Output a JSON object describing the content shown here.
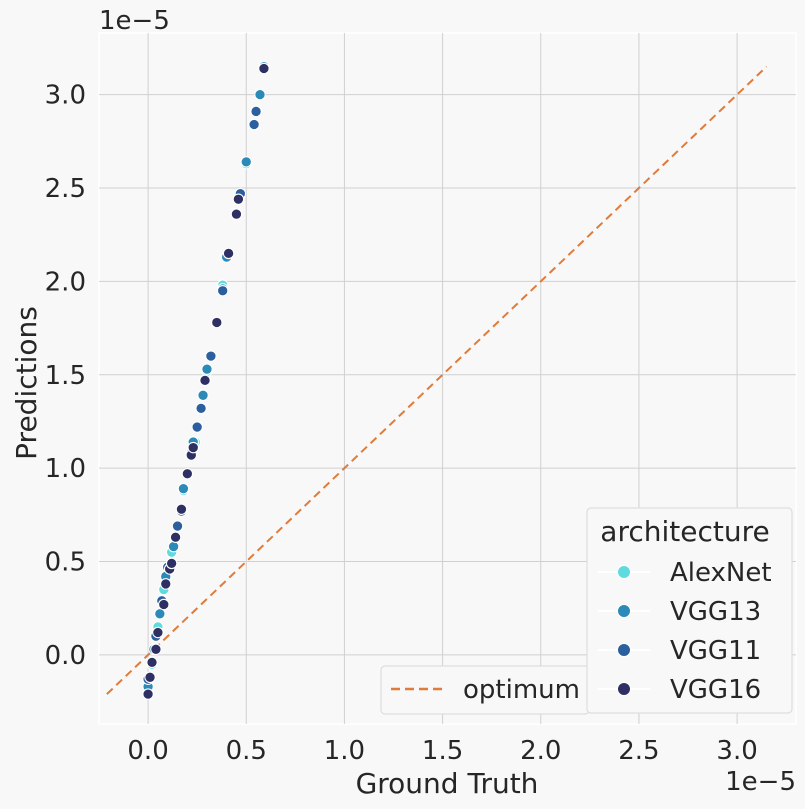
{
  "chart_data": {
    "type": "scatter",
    "title": "",
    "xlabel": "Ground Truth",
    "ylabel": "Predictions",
    "x_offset_text": "1e−5",
    "y_offset_text": "1e−5",
    "xlim": [
      -0.25,
      3.3
    ],
    "ylim": [
      -0.37,
      3.33
    ],
    "x_ticks": [
      0.0,
      0.5,
      1.0,
      1.5,
      2.0,
      2.5,
      3.0
    ],
    "x_tick_labels": [
      "0.0",
      "0.5",
      "1.0",
      "1.5",
      "2.0",
      "2.5",
      "3.0"
    ],
    "y_ticks": [
      0.0,
      0.5,
      1.0,
      1.5,
      2.0,
      2.5,
      3.0
    ],
    "y_tick_labels": [
      "0.0",
      "0.5",
      "1.0",
      "1.5",
      "2.0",
      "2.5",
      "3.0"
    ],
    "grid": true,
    "legend_title": "architecture",
    "legend_placement": "lower-right",
    "optimum_legend_placement": "bottom-center",
    "series": [
      {
        "name": "AlexNet",
        "color": "#5fdbe0",
        "points": [
          [
            0.0,
            -0.2
          ],
          [
            0.02,
            -0.05
          ],
          [
            0.05,
            0.15
          ],
          [
            0.08,
            0.35
          ],
          [
            0.12,
            0.55
          ],
          [
            0.18,
            0.88
          ],
          [
            0.24,
            1.14
          ],
          [
            0.3,
            1.52
          ],
          [
            0.38,
            1.98
          ],
          [
            0.5,
            2.63
          ],
          [
            0.59,
            3.15
          ]
        ]
      },
      {
        "name": "VGG13",
        "color": "#2b8ab7",
        "points": [
          [
            0.0,
            -0.17
          ],
          [
            0.03,
            0.03
          ],
          [
            0.06,
            0.22
          ],
          [
            0.09,
            0.42
          ],
          [
            0.13,
            0.58
          ],
          [
            0.18,
            0.89
          ],
          [
            0.23,
            1.14
          ],
          [
            0.28,
            1.39
          ],
          [
            0.3,
            1.53
          ],
          [
            0.38,
            1.96
          ],
          [
            0.4,
            2.13
          ],
          [
            0.5,
            2.64
          ],
          [
            0.57,
            3.0
          ],
          [
            0.59,
            3.15
          ]
        ]
      },
      {
        "name": "VGG11",
        "color": "#2c5f9d",
        "points": [
          [
            0.0,
            -0.13
          ],
          [
            0.04,
            0.1
          ],
          [
            0.07,
            0.29
          ],
          [
            0.1,
            0.47
          ],
          [
            0.15,
            0.69
          ],
          [
            0.17,
            0.77
          ],
          [
            0.22,
            1.08
          ],
          [
            0.25,
            1.22
          ],
          [
            0.27,
            1.32
          ],
          [
            0.32,
            1.6
          ],
          [
            0.38,
            1.95
          ],
          [
            0.47,
            2.47
          ],
          [
            0.54,
            2.84
          ],
          [
            0.55,
            2.91
          ]
        ]
      },
      {
        "name": "VGG16",
        "color": "#2e2f62",
        "points": [
          [
            0.0,
            -0.21
          ],
          [
            0.01,
            -0.12
          ],
          [
            0.02,
            -0.04
          ],
          [
            0.04,
            0.03
          ],
          [
            0.05,
            0.12
          ],
          [
            0.08,
            0.27
          ],
          [
            0.09,
            0.38
          ],
          [
            0.11,
            0.46
          ],
          [
            0.12,
            0.49
          ],
          [
            0.14,
            0.63
          ],
          [
            0.17,
            0.78
          ],
          [
            0.2,
            0.97
          ],
          [
            0.22,
            1.07
          ],
          [
            0.23,
            1.11
          ],
          [
            0.29,
            1.47
          ],
          [
            0.35,
            1.78
          ],
          [
            0.41,
            2.15
          ],
          [
            0.45,
            2.36
          ],
          [
            0.46,
            2.44
          ],
          [
            0.59,
            3.14
          ]
        ]
      }
    ],
    "reference_line": {
      "name": "optimum",
      "color": "#e07b39",
      "style": "dashed",
      "x": [
        -0.21,
        3.15
      ],
      "y": [
        -0.21,
        3.15
      ]
    }
  }
}
